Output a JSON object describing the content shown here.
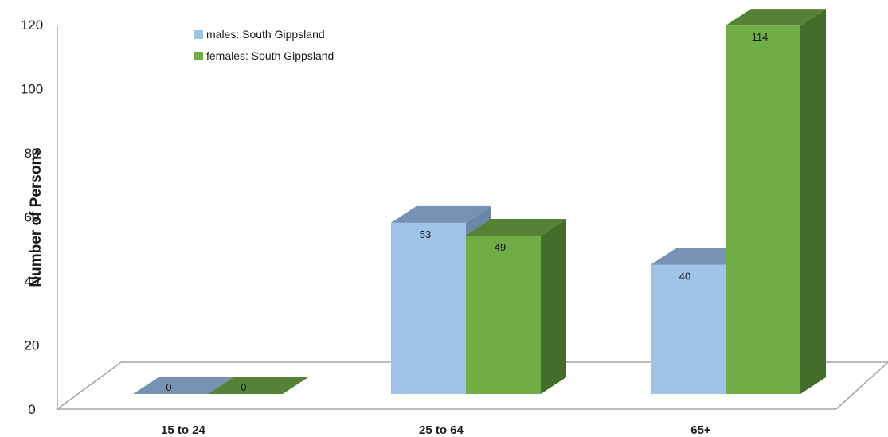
{
  "chart_data": {
    "type": "bar",
    "style": "3d-clustered-column",
    "categories": [
      "15 to 24",
      "25 to 64",
      "65+"
    ],
    "series": [
      {
        "name": "males: South Gippsland",
        "values": [
          0,
          53,
          40
        ],
        "color": "#9dc3e6",
        "top_color": "#7792b4",
        "side_color": "#6a86a8"
      },
      {
        "name": "females: South Gippsland",
        "values": [
          0,
          49,
          114
        ],
        "color": "#70ad47",
        "top_color": "#558236",
        "side_color": "#446d29"
      }
    ],
    "xlabel": "",
    "ylabel": "Number of Persons",
    "yticks": [
      0,
      20,
      40,
      60,
      80,
      100,
      120
    ],
    "ylim": [
      0,
      120
    ],
    "legend_position": "top-left",
    "grid": false
  }
}
